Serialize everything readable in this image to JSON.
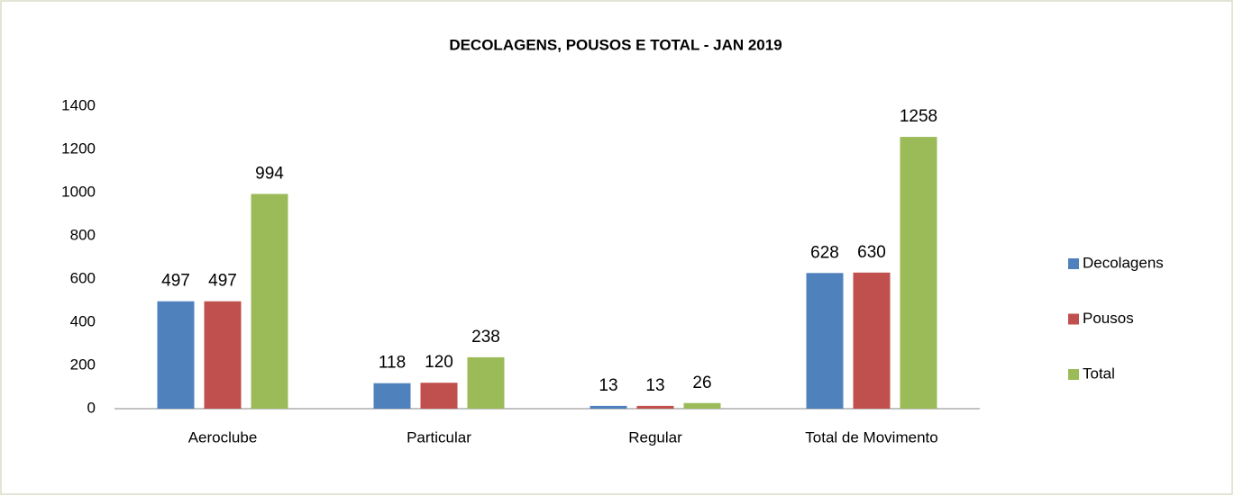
{
  "chart_data": {
    "type": "bar",
    "title": "DECOLAGENS, POUSOS E TOTAL -  JAN 2019",
    "categories": [
      "Aeroclube",
      "Particular",
      "Regular",
      "Total de Movimento"
    ],
    "series": [
      {
        "name": "Decolagens",
        "color": "#4f81bd",
        "values": [
          497,
          118,
          13,
          628
        ]
      },
      {
        "name": "Pousos",
        "color": "#c0504d",
        "values": [
          497,
          120,
          13,
          630
        ]
      },
      {
        "name": "Total",
        "color": "#9bbb59",
        "values": [
          994,
          238,
          26,
          1258
        ]
      }
    ],
    "ylim": [
      0,
      1400
    ],
    "yticks": [
      0,
      200,
      400,
      600,
      800,
      1000,
      1200,
      1400
    ],
    "grid": false,
    "legend": "right"
  }
}
